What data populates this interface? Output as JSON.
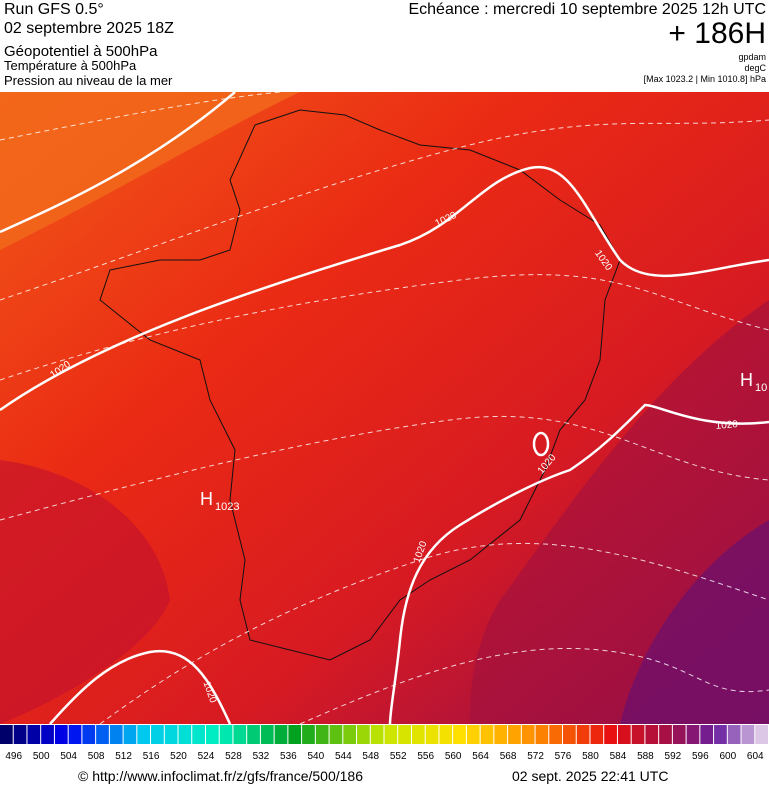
{
  "header": {
    "run": "Run GFS 0.5°",
    "date": "02 septembre 2025 18Z",
    "fields": [
      "Géopotentiel à 500hPa",
      "Température à 500hPa",
      "Pression au niveau de la mer"
    ],
    "forecast": "Echéance : mercredi 10 septembre 2025 12h UTC",
    "lead": "+ 186H",
    "units": [
      "gpdam",
      "degC"
    ],
    "range": "[Max 1023.2 | Min 1010.8] hPa"
  },
  "map": {
    "highs": [
      {
        "label": "H",
        "value": "1023"
      },
      {
        "label": "H",
        "value": "10"
      }
    ],
    "isobar_labels": [
      "1020",
      "1020",
      "1020",
      "1020",
      "1020",
      "1020",
      "1020"
    ]
  },
  "legend": {
    "ticks": [
      496,
      500,
      504,
      508,
      512,
      516,
      520,
      524,
      528,
      532,
      536,
      540,
      544,
      548,
      552,
      556,
      560,
      564,
      568,
      572,
      576,
      580,
      584,
      588,
      592,
      596,
      600,
      604
    ]
  },
  "footer": {
    "url": "© http://www.infoclimat.fr/z/gfs/france/500/186",
    "timestamp": "02 sept. 2025 22:41 UTC"
  }
}
